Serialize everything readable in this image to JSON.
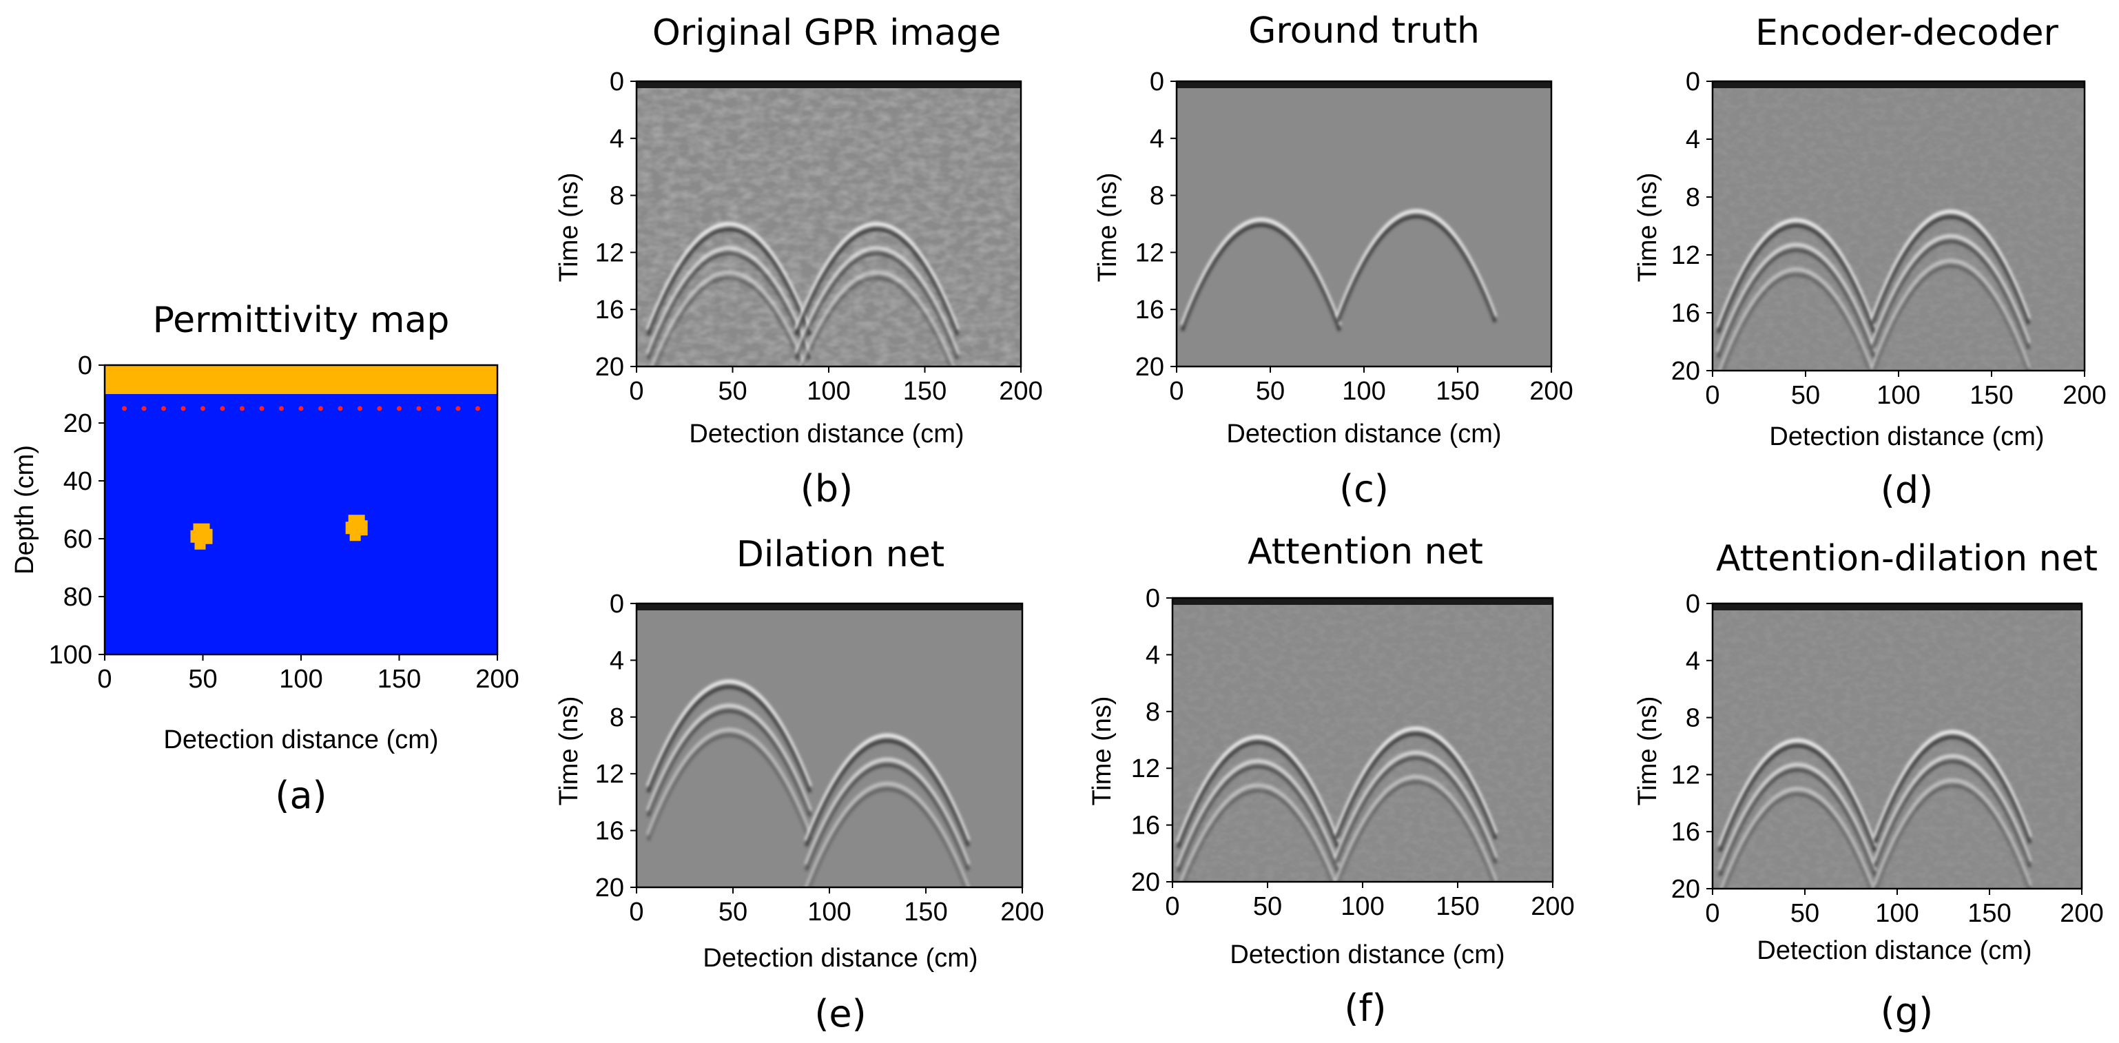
{
  "figure": {
    "panels": [
      {
        "id": "a",
        "title": "Permittivity map",
        "subcaption": "(a)",
        "type": "permittivity_map",
        "xlabel": "Detection distance (cm)",
        "ylabel": "Depth (cm)",
        "x_ticks": [
          "0",
          "50",
          "100",
          "150",
          "200"
        ],
        "y_ticks": [
          "0",
          "20",
          "40",
          "60",
          "80",
          "100"
        ],
        "xlim": [
          0,
          200
        ],
        "ylim": [
          0,
          100
        ],
        "y_inverted": true,
        "surface_layer": {
          "depth_range": [
            0,
            10
          ],
          "color": "#FFB400"
        },
        "medium_color": "#0019FF",
        "antenna_depth": 15,
        "antenna_positions": [
          10,
          20,
          30,
          40,
          50,
          60,
          70,
          80,
          90,
          100,
          110,
          120,
          130,
          140,
          150,
          160,
          170,
          180,
          190
        ],
        "antenna_color": "#FF2020",
        "targets": [
          {
            "x": 50,
            "depth": 59,
            "color": "#FFB400"
          },
          {
            "x": 129,
            "depth": 56,
            "color": "#FFB400"
          }
        ]
      },
      {
        "id": "b",
        "title": "Original GPR image",
        "subcaption": "(b)",
        "type": "gpr_bscan",
        "xlabel": "Detection distance  (cm)",
        "ylabel": "Time (ns)",
        "x_ticks": [
          "0",
          "50",
          "100",
          "150",
          "200"
        ],
        "y_ticks": [
          "0",
          "4",
          "8",
          "12",
          "16",
          "20"
        ],
        "xlim": [
          0,
          200
        ],
        "ylim": [
          0,
          20
        ],
        "y_inverted": true,
        "noise_level": "high",
        "direct_wave_bands_ns": [
          1,
          2.5,
          4
        ],
        "hyperbolas": [
          {
            "apex_x": 48,
            "apex_t": 10
          },
          {
            "apex_x": 125,
            "apex_t": 10
          }
        ]
      },
      {
        "id": "c",
        "title": "Ground truth",
        "subcaption": "(c)",
        "type": "gpr_bscan",
        "xlabel": "Detection distance  (cm)",
        "ylabel": "Time (ns)",
        "x_ticks": [
          "0",
          "50",
          "100",
          "150",
          "200"
        ],
        "y_ticks": [
          "0",
          "4",
          "8",
          "12",
          "16",
          "20"
        ],
        "xlim": [
          0,
          200
        ],
        "ylim": [
          0,
          20
        ],
        "y_inverted": true,
        "noise_level": "none",
        "direct_wave_bands_ns": [],
        "hyperbolas": [
          {
            "apex_x": 45,
            "apex_t": 9.7
          },
          {
            "apex_x": 128,
            "apex_t": 9.1
          }
        ]
      },
      {
        "id": "d",
        "title": "Encoder-decoder",
        "subcaption": "(d)",
        "type": "gpr_bscan",
        "xlabel": "Detection distance  (cm)",
        "ylabel": "Time (ns)",
        "x_ticks": [
          "0",
          "50",
          "100",
          "150",
          "200"
        ],
        "y_ticks": [
          "0",
          "4",
          "8",
          "12",
          "16",
          "20"
        ],
        "xlim": [
          0,
          200
        ],
        "ylim": [
          0,
          20
        ],
        "y_inverted": true,
        "noise_level": "low",
        "direct_wave_bands_ns": [
          3.8
        ],
        "hyperbolas": [
          {
            "apex_x": 45,
            "apex_t": 9.6
          },
          {
            "apex_x": 128,
            "apex_t": 9.0
          }
        ]
      },
      {
        "id": "e",
        "title": "Dilation net",
        "subcaption": "(e)",
        "type": "gpr_bscan",
        "xlabel": "Detection distance  (cm)",
        "ylabel": "Time (ns)",
        "x_ticks": [
          "0",
          "50",
          "100",
          "150",
          "200"
        ],
        "y_ticks": [
          "0",
          "4",
          "8",
          "12",
          "16",
          "20"
        ],
        "xlim": [
          0,
          200
        ],
        "ylim": [
          0,
          20
        ],
        "y_inverted": true,
        "noise_level": "none",
        "direct_wave_bands_ns": [],
        "hyperbolas": [
          {
            "apex_x": 48,
            "apex_t": 5.5
          },
          {
            "apex_x": 130,
            "apex_t": 9.3
          }
        ]
      },
      {
        "id": "f",
        "title": "Attention net",
        "subcaption": "(f)",
        "type": "gpr_bscan",
        "xlabel": "Detection distance  (cm)",
        "ylabel": "Time (ns)",
        "x_ticks": [
          "0",
          "50",
          "100",
          "150",
          "200"
        ],
        "y_ticks": [
          "0",
          "4",
          "8",
          "12",
          "16",
          "20"
        ],
        "xlim": [
          0,
          200
        ],
        "ylim": [
          0,
          20
        ],
        "y_inverted": true,
        "noise_level": "low",
        "direct_wave_bands_ns": [
          4
        ],
        "hyperbolas": [
          {
            "apex_x": 45,
            "apex_t": 9.8
          },
          {
            "apex_x": 128,
            "apex_t": 9.2
          }
        ]
      },
      {
        "id": "g",
        "title": "Attention-dilation net",
        "subcaption": "(g)",
        "type": "gpr_bscan",
        "xlabel": "Detection distance  (cm)",
        "ylabel": "Time (ns)",
        "x_ticks": [
          "0",
          "50",
          "100",
          "150",
          "200"
        ],
        "y_ticks": [
          "0",
          "4",
          "8",
          "12",
          "16",
          "20"
        ],
        "xlim": [
          0,
          200
        ],
        "ylim": [
          0,
          20
        ],
        "y_inverted": true,
        "noise_level": "low",
        "direct_wave_bands_ns": [],
        "hyperbolas": [
          {
            "apex_x": 46,
            "apex_t": 9.6
          },
          {
            "apex_x": 130,
            "apex_t": 9.0
          }
        ]
      }
    ]
  }
}
